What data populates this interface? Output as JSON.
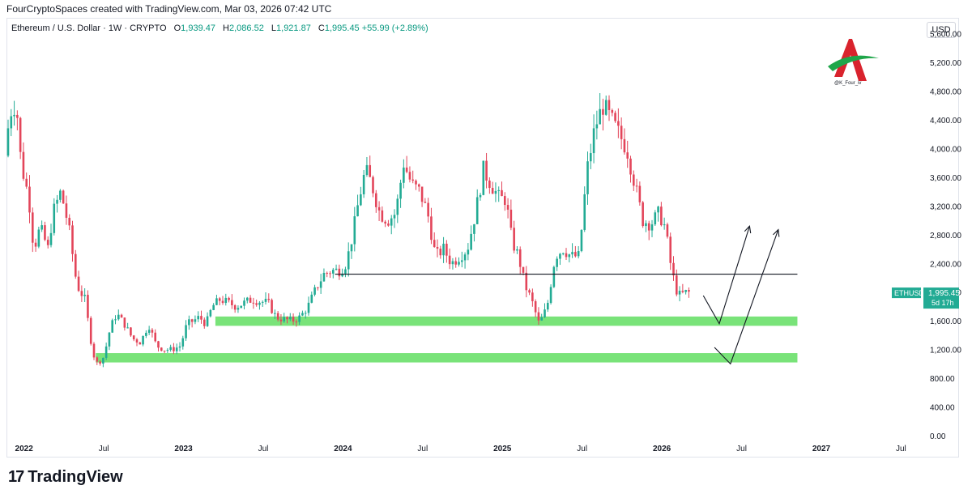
{
  "caption": "FourCryptoSpaces created with TradingView.com, Mar 03, 2026 07:42 UTC",
  "legend": {
    "symbol": "Ethereum / U.S. Dollar · 1W · CRYPTO",
    "o_label": "O",
    "o_value": "1,939.47",
    "h_label": "H",
    "h_value": "2,086.52",
    "l_label": "L",
    "l_value": "1,921.87",
    "c_label": "C",
    "c_value": "1,995.45",
    "change": "+55.99 (+2.89%)"
  },
  "currency": "USD",
  "watermark_text": "@K_Four_iv",
  "footer_brand": "TradingView",
  "footer_mark": "17",
  "colors": {
    "up": "#22ab94",
    "down": "#e3455a",
    "zone": "#4cd94c",
    "tag": "#22ab94",
    "line": "#131722"
  },
  "chart_data": {
    "type": "candlestick",
    "title": "Ethereum / U.S. Dollar · 1W · CRYPTO",
    "ylim": [
      0,
      5900
    ],
    "y_ticks": [
      "5,600.00",
      "5,200.00",
      "4,800.00",
      "4,400.00",
      "4,000.00",
      "3,600.00",
      "3,200.00",
      "2,800.00",
      "2,400.00",
      "2,000.00",
      "1,600.00",
      "1,200.00",
      "800.00",
      "400.00",
      "0.00"
    ],
    "y_tick_values": [
      5600,
      5200,
      4800,
      4400,
      4000,
      3600,
      3200,
      2800,
      2400,
      2000,
      1600,
      1200,
      800,
      400,
      0
    ],
    "x_ticks": [
      {
        "label": "2022",
        "t": 2022.0,
        "bold": true
      },
      {
        "label": "Jul",
        "t": 2022.5,
        "bold": false
      },
      {
        "label": "2023",
        "t": 2023.0,
        "bold": true
      },
      {
        "label": "Jul",
        "t": 2023.5,
        "bold": false
      },
      {
        "label": "2024",
        "t": 2024.0,
        "bold": true
      },
      {
        "label": "Jul",
        "t": 2024.5,
        "bold": false
      },
      {
        "label": "2025",
        "t": 2025.0,
        "bold": true
      },
      {
        "label": "Jul",
        "t": 2025.5,
        "bold": false
      },
      {
        "label": "2026",
        "t": 2026.0,
        "bold": true
      },
      {
        "label": "Jul",
        "t": 2026.5,
        "bold": false
      },
      {
        "label": "2027",
        "t": 2027.0,
        "bold": true
      },
      {
        "label": "Jul",
        "t": 2027.5,
        "bold": false
      }
    ],
    "xlim": [
      2021.9,
      2027.63
    ],
    "price_path": [
      [
        2021.9,
        3900
      ],
      [
        2021.93,
        4500
      ],
      [
        2021.97,
        4650
      ],
      [
        2022.0,
        3800
      ],
      [
        2022.05,
        3300
      ],
      [
        2022.08,
        2600
      ],
      [
        2022.12,
        2900
      ],
      [
        2022.17,
        2600
      ],
      [
        2022.2,
        3100
      ],
      [
        2022.25,
        3400
      ],
      [
        2022.3,
        2900
      ],
      [
        2022.35,
        2100
      ],
      [
        2022.4,
        1900
      ],
      [
        2022.45,
        1150
      ],
      [
        2022.48,
        1000
      ],
      [
        2022.52,
        1100
      ],
      [
        2022.56,
        1500
      ],
      [
        2022.6,
        1700
      ],
      [
        2022.65,
        1550
      ],
      [
        2022.7,
        1350
      ],
      [
        2022.75,
        1300
      ],
      [
        2022.8,
        1550
      ],
      [
        2022.85,
        1250
      ],
      [
        2022.9,
        1200
      ],
      [
        2022.95,
        1200
      ],
      [
        2023.0,
        1250
      ],
      [
        2023.04,
        1550
      ],
      [
        2023.08,
        1600
      ],
      [
        2023.12,
        1650
      ],
      [
        2023.16,
        1550
      ],
      [
        2023.2,
        1800
      ],
      [
        2023.25,
        1900
      ],
      [
        2023.3,
        1850
      ],
      [
        2023.35,
        1800
      ],
      [
        2023.4,
        1850
      ],
      [
        2023.45,
        1900
      ],
      [
        2023.5,
        1870
      ],
      [
        2023.55,
        1850
      ],
      [
        2023.6,
        1650
      ],
      [
        2023.65,
        1620
      ],
      [
        2023.7,
        1600
      ],
      [
        2023.75,
        1650
      ],
      [
        2023.8,
        1800
      ],
      [
        2023.85,
        2050
      ],
      [
        2023.9,
        2250
      ],
      [
        2023.95,
        2300
      ],
      [
        2024.0,
        2300
      ],
      [
        2024.04,
        2400
      ],
      [
        2024.08,
        2800
      ],
      [
        2024.12,
        3300
      ],
      [
        2024.16,
        3700
      ],
      [
        2024.2,
        3500
      ],
      [
        2024.25,
        3100
      ],
      [
        2024.3,
        3000
      ],
      [
        2024.35,
        3100
      ],
      [
        2024.4,
        3800
      ],
      [
        2024.45,
        3500
      ],
      [
        2024.5,
        3400
      ],
      [
        2024.55,
        3100
      ],
      [
        2024.6,
        2500
      ],
      [
        2024.65,
        2600
      ],
      [
        2024.7,
        2400
      ],
      [
        2024.75,
        2500
      ],
      [
        2024.8,
        2600
      ],
      [
        2024.85,
        3100
      ],
      [
        2024.9,
        3700
      ],
      [
        2024.95,
        3500
      ],
      [
        2025.0,
        3300
      ],
      [
        2025.04,
        3300
      ],
      [
        2025.08,
        2700
      ],
      [
        2025.12,
        2500
      ],
      [
        2025.16,
        2100
      ],
      [
        2025.2,
        1900
      ],
      [
        2025.25,
        1550
      ],
      [
        2025.3,
        1800
      ],
      [
        2025.35,
        2500
      ],
      [
        2025.4,
        2600
      ],
      [
        2025.45,
        2500
      ],
      [
        2025.5,
        2500
      ],
      [
        2025.55,
        3700
      ],
      [
        2025.6,
        4300
      ],
      [
        2025.65,
        4600
      ],
      [
        2025.7,
        4400
      ],
      [
        2025.75,
        4200
      ],
      [
        2025.8,
        4000
      ],
      [
        2025.85,
        3500
      ],
      [
        2025.9,
        3000
      ],
      [
        2025.95,
        2950
      ],
      [
        2026.0,
        3100
      ],
      [
        2026.04,
        2900
      ],
      [
        2026.08,
        2300
      ],
      [
        2026.12,
        1950
      ],
      [
        2026.17,
        1995
      ]
    ],
    "horizontal_line": {
      "price": 2250,
      "from": 2023.95,
      "to": 2026.85
    },
    "zones": [
      {
        "from": 2023.2,
        "to": 2026.85,
        "low": 1530,
        "high": 1660
      },
      {
        "from": 2022.45,
        "to": 2026.85,
        "low": 1020,
        "high": 1150
      }
    ],
    "arrows": [
      {
        "points": [
          [
            2026.26,
            1950
          ],
          [
            2026.36,
            1560
          ],
          [
            2026.55,
            2920
          ]
        ]
      },
      {
        "points": [
          [
            2026.33,
            1230
          ],
          [
            2026.43,
            1000
          ],
          [
            2026.73,
            2870
          ]
        ]
      }
    ],
    "last_price": {
      "symbol": "ETHUSD",
      "price": "1,995.45",
      "countdown": "5d 17h",
      "value": 1995.45
    }
  }
}
